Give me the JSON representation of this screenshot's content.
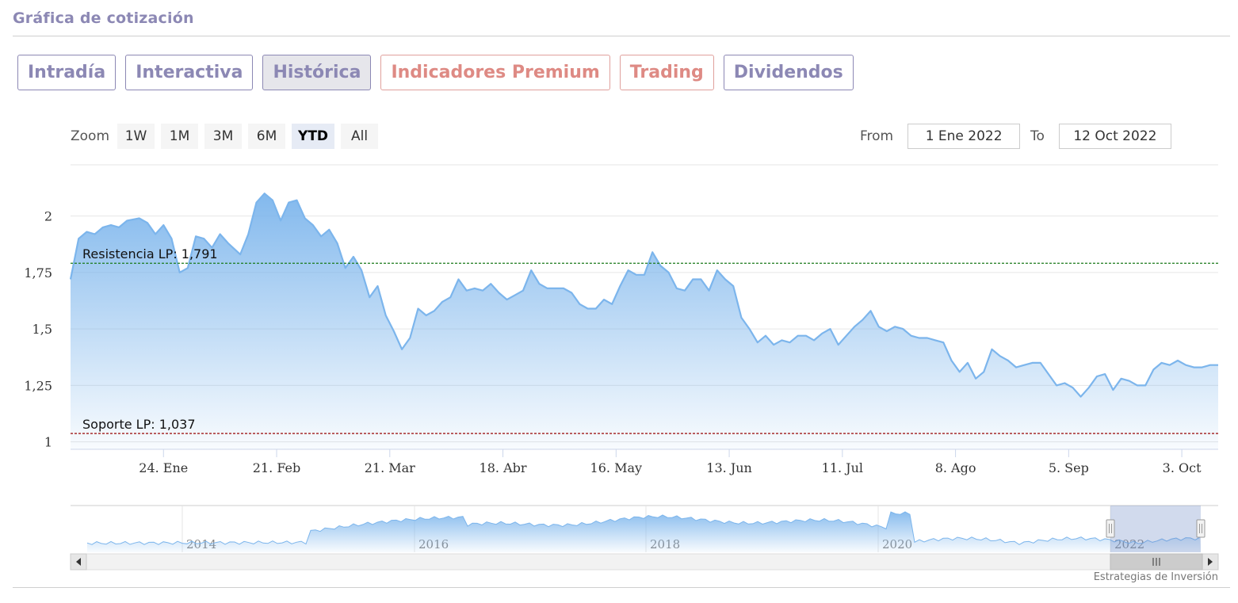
{
  "header": {
    "title": "Gráfica de cotización"
  },
  "tabs": [
    {
      "label": "Intradía",
      "style": "normal"
    },
    {
      "label": "Interactiva",
      "style": "normal"
    },
    {
      "label": "Histórica",
      "style": "active"
    },
    {
      "label": "Indicadores Premium",
      "style": "premium"
    },
    {
      "label": "Trading",
      "style": "premium"
    },
    {
      "label": "Dividendos",
      "style": "normal"
    }
  ],
  "zoom": {
    "label": "Zoom",
    "buttons": [
      "1W",
      "1M",
      "3M",
      "6M",
      "YTD",
      "All"
    ],
    "selected": "YTD"
  },
  "range": {
    "from_label": "From",
    "from_value": "1 Ene 2022",
    "to_label": "To",
    "to_value": "12 Oct 2022"
  },
  "credits": "Estrategias de Inversión",
  "colors": {
    "accent": "#8c88b4",
    "premium": "#de8a84",
    "series": "#7cb5ec",
    "resistance": "#1a7a1a",
    "support": "#a01818"
  },
  "chart_data": {
    "type": "area",
    "title": "",
    "xlabel": "",
    "ylabel": "",
    "ylim": [
      0.967,
      2.227
    ],
    "y_ticks": [
      "1",
      "1,25",
      "1,5",
      "1,75",
      "2"
    ],
    "y_tick_values": [
      1,
      1.25,
      1.5,
      1.75,
      2
    ],
    "x_range": [
      "2022-01-01",
      "2022-10-12"
    ],
    "x_ticks": [
      "24. Ene",
      "21. Feb",
      "21. Mar",
      "18. Abr",
      "16. May",
      "13. Jun",
      "11. Jul",
      "8. Ago",
      "5. Sep",
      "3. Oct"
    ],
    "x_tick_dates": [
      "2022-01-24",
      "2022-02-21",
      "2022-03-21",
      "2022-04-18",
      "2022-05-16",
      "2022-06-13",
      "2022-07-11",
      "2022-08-08",
      "2022-09-05",
      "2022-10-03"
    ],
    "grid": true,
    "legend": "none",
    "series": [
      {
        "data": [
          [
            "2022-01-01",
            1.72
          ],
          [
            "2022-01-03",
            1.9
          ],
          [
            "2022-01-05",
            1.93
          ],
          [
            "2022-01-07",
            1.92
          ],
          [
            "2022-01-09",
            1.95
          ],
          [
            "2022-01-11",
            1.96
          ],
          [
            "2022-01-13",
            1.95
          ],
          [
            "2022-01-15",
            1.98
          ],
          [
            "2022-01-18",
            1.99
          ],
          [
            "2022-01-20",
            1.97
          ],
          [
            "2022-01-22",
            1.92
          ],
          [
            "2022-01-24",
            1.96
          ],
          [
            "2022-01-26",
            1.9
          ],
          [
            "2022-01-28",
            1.75
          ],
          [
            "2022-01-30",
            1.77
          ],
          [
            "2022-02-01",
            1.91
          ],
          [
            "2022-02-03",
            1.9
          ],
          [
            "2022-02-05",
            1.86
          ],
          [
            "2022-02-07",
            1.92
          ],
          [
            "2022-02-09",
            1.88
          ],
          [
            "2022-02-12",
            1.83
          ],
          [
            "2022-02-14",
            1.92
          ],
          [
            "2022-02-16",
            2.06
          ],
          [
            "2022-02-18",
            2.1
          ],
          [
            "2022-02-20",
            2.07
          ],
          [
            "2022-02-22",
            1.98
          ],
          [
            "2022-02-24",
            2.06
          ],
          [
            "2022-02-26",
            2.07
          ],
          [
            "2022-02-28",
            1.99
          ],
          [
            "2022-03-02",
            1.96
          ],
          [
            "2022-03-04",
            1.91
          ],
          [
            "2022-03-06",
            1.94
          ],
          [
            "2022-03-08",
            1.88
          ],
          [
            "2022-03-10",
            1.77
          ],
          [
            "2022-03-12",
            1.82
          ],
          [
            "2022-03-14",
            1.76
          ],
          [
            "2022-03-16",
            1.64
          ],
          [
            "2022-03-18",
            1.69
          ],
          [
            "2022-03-20",
            1.56
          ],
          [
            "2022-03-22",
            1.49
          ],
          [
            "2022-03-24",
            1.41
          ],
          [
            "2022-03-26",
            1.46
          ],
          [
            "2022-03-28",
            1.59
          ],
          [
            "2022-03-30",
            1.56
          ],
          [
            "2022-04-01",
            1.58
          ],
          [
            "2022-04-03",
            1.62
          ],
          [
            "2022-04-05",
            1.64
          ],
          [
            "2022-04-07",
            1.72
          ],
          [
            "2022-04-09",
            1.67
          ],
          [
            "2022-04-11",
            1.68
          ],
          [
            "2022-04-13",
            1.67
          ],
          [
            "2022-04-15",
            1.7
          ],
          [
            "2022-04-17",
            1.66
          ],
          [
            "2022-04-19",
            1.63
          ],
          [
            "2022-04-21",
            1.65
          ],
          [
            "2022-04-23",
            1.67
          ],
          [
            "2022-04-25",
            1.76
          ],
          [
            "2022-04-27",
            1.7
          ],
          [
            "2022-04-29",
            1.68
          ],
          [
            "2022-05-01",
            1.68
          ],
          [
            "2022-05-03",
            1.68
          ],
          [
            "2022-05-05",
            1.66
          ],
          [
            "2022-05-07",
            1.61
          ],
          [
            "2022-05-09",
            1.59
          ],
          [
            "2022-05-11",
            1.59
          ],
          [
            "2022-05-13",
            1.63
          ],
          [
            "2022-05-15",
            1.61
          ],
          [
            "2022-05-17",
            1.69
          ],
          [
            "2022-05-19",
            1.76
          ],
          [
            "2022-05-21",
            1.74
          ],
          [
            "2022-05-23",
            1.74
          ],
          [
            "2022-05-25",
            1.84
          ],
          [
            "2022-05-27",
            1.78
          ],
          [
            "2022-05-29",
            1.75
          ],
          [
            "2022-05-31",
            1.68
          ],
          [
            "2022-06-02",
            1.67
          ],
          [
            "2022-06-04",
            1.72
          ],
          [
            "2022-06-06",
            1.72
          ],
          [
            "2022-06-08",
            1.67
          ],
          [
            "2022-06-10",
            1.76
          ],
          [
            "2022-06-12",
            1.72
          ],
          [
            "2022-06-14",
            1.69
          ],
          [
            "2022-06-16",
            1.55
          ],
          [
            "2022-06-18",
            1.5
          ],
          [
            "2022-06-20",
            1.44
          ],
          [
            "2022-06-22",
            1.47
          ],
          [
            "2022-06-24",
            1.43
          ],
          [
            "2022-06-26",
            1.45
          ],
          [
            "2022-06-28",
            1.44
          ],
          [
            "2022-06-30",
            1.47
          ],
          [
            "2022-07-02",
            1.47
          ],
          [
            "2022-07-04",
            1.45
          ],
          [
            "2022-07-06",
            1.48
          ],
          [
            "2022-07-08",
            1.5
          ],
          [
            "2022-07-10",
            1.43
          ],
          [
            "2022-07-12",
            1.47
          ],
          [
            "2022-07-14",
            1.51
          ],
          [
            "2022-07-16",
            1.54
          ],
          [
            "2022-07-18",
            1.58
          ],
          [
            "2022-07-20",
            1.51
          ],
          [
            "2022-07-22",
            1.49
          ],
          [
            "2022-07-24",
            1.51
          ],
          [
            "2022-07-26",
            1.5
          ],
          [
            "2022-07-28",
            1.47
          ],
          [
            "2022-07-30",
            1.46
          ],
          [
            "2022-08-01",
            1.46
          ],
          [
            "2022-08-03",
            1.45
          ],
          [
            "2022-08-05",
            1.44
          ],
          [
            "2022-08-07",
            1.36
          ],
          [
            "2022-08-09",
            1.31
          ],
          [
            "2022-08-11",
            1.35
          ],
          [
            "2022-08-13",
            1.28
          ],
          [
            "2022-08-15",
            1.31
          ],
          [
            "2022-08-17",
            1.41
          ],
          [
            "2022-08-19",
            1.38
          ],
          [
            "2022-08-21",
            1.36
          ],
          [
            "2022-08-23",
            1.33
          ],
          [
            "2022-08-25",
            1.34
          ],
          [
            "2022-08-27",
            1.35
          ],
          [
            "2022-08-29",
            1.35
          ],
          [
            "2022-08-31",
            1.3
          ],
          [
            "2022-09-02",
            1.25
          ],
          [
            "2022-09-04",
            1.26
          ],
          [
            "2022-09-06",
            1.24
          ],
          [
            "2022-09-08",
            1.2
          ],
          [
            "2022-09-10",
            1.24
          ],
          [
            "2022-09-12",
            1.29
          ],
          [
            "2022-09-14",
            1.3
          ],
          [
            "2022-09-16",
            1.23
          ],
          [
            "2022-09-18",
            1.28
          ],
          [
            "2022-09-20",
            1.27
          ],
          [
            "2022-09-22",
            1.25
          ],
          [
            "2022-09-24",
            1.25
          ],
          [
            "2022-09-26",
            1.32
          ],
          [
            "2022-09-28",
            1.35
          ],
          [
            "2022-09-30",
            1.34
          ],
          [
            "2022-10-02",
            1.36
          ],
          [
            "2022-10-04",
            1.34
          ],
          [
            "2022-10-06",
            1.33
          ],
          [
            "2022-10-08",
            1.33
          ],
          [
            "2022-10-10",
            1.34
          ],
          [
            "2022-10-12",
            1.34
          ]
        ]
      }
    ],
    "reference_lines": [
      {
        "label": "Resistencia LP: 1,791",
        "value": 1.791,
        "color": "#1a7a1a"
      },
      {
        "label": "Soporte LP: 1,037",
        "value": 1.037,
        "color": "#a01818"
      }
    ],
    "navigator": {
      "year_labels": [
        "2014",
        "2016",
        "2018",
        "2020",
        "2022"
      ]
    }
  }
}
